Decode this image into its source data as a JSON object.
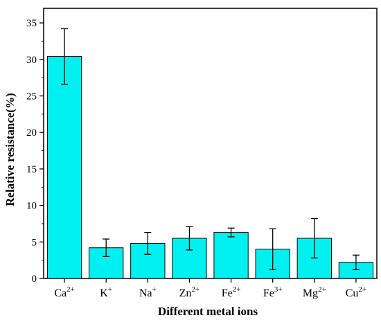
{
  "chart_data": {
    "type": "bar",
    "xlabel": "Different metal ions",
    "ylabel": "Relative resistance(%)",
    "categories": [
      {
        "base": "Ca",
        "sup": "2+"
      },
      {
        "base": "K",
        "sup": "+"
      },
      {
        "base": "Na",
        "sup": "+"
      },
      {
        "base": "Zn",
        "sup": "2+"
      },
      {
        "base": "Fe",
        "sup": "2+"
      },
      {
        "base": "Fe",
        "sup": "3+"
      },
      {
        "base": "Mg",
        "sup": "2+"
      },
      {
        "base": "Cu",
        "sup": "2+"
      }
    ],
    "values": [
      30.4,
      4.2,
      4.8,
      5.5,
      6.3,
      4.0,
      5.5,
      2.2
    ],
    "errors": [
      3.8,
      1.2,
      1.5,
      1.6,
      0.6,
      2.8,
      2.7,
      1.0
    ],
    "ylim": [
      0,
      37
    ],
    "yticks": [
      0,
      5,
      10,
      15,
      20,
      25,
      30,
      35
    ],
    "bar_color": "#00f0f0",
    "grid": false
  }
}
